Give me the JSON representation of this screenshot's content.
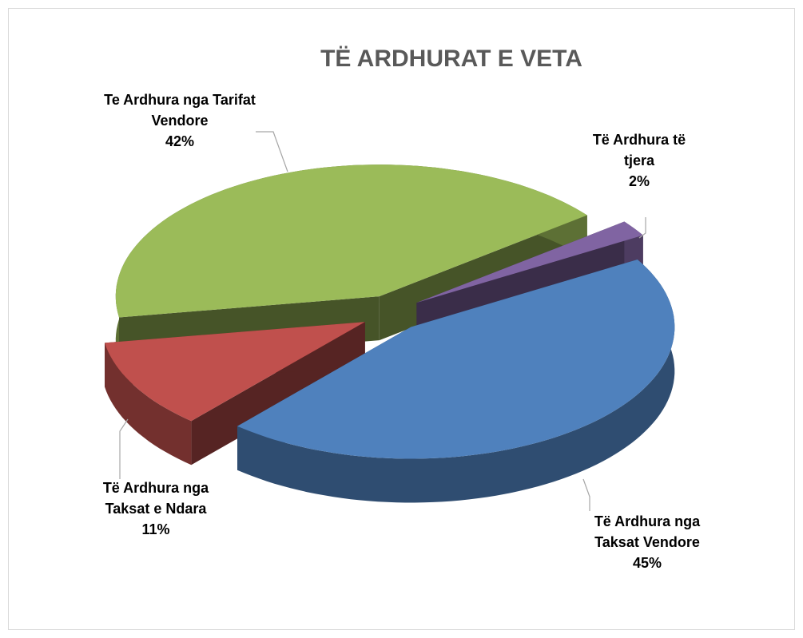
{
  "chart_data": {
    "type": "pie3d",
    "title": "TË ARDHURAT E VETA",
    "categories": [
      "Të Ardhura të tjera",
      "Të Ardhura nga Taksat Vendore",
      "Të Ardhura nga Taksat e Ndara",
      "Te Ardhura nga Tarifat Vendore"
    ],
    "values": [
      2,
      45,
      11,
      42
    ],
    "value_labels": [
      "2%",
      "45%",
      "11%",
      "42%"
    ],
    "colors": [
      "#8064a2",
      "#4f81bd",
      "#c0504d",
      "#9bbb59"
    ]
  }
}
